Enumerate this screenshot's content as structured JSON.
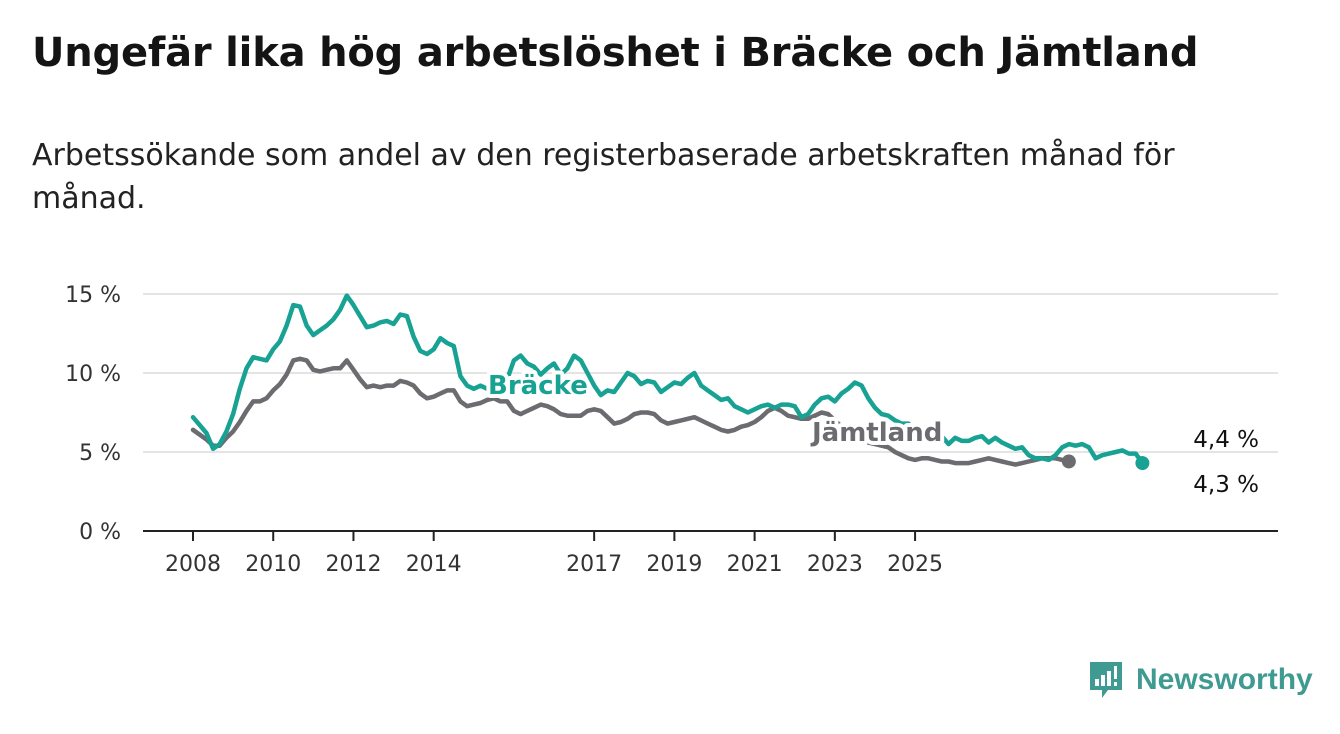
{
  "title": "Ungefär lika hög arbetslöshet i Bräcke och Jämtland",
  "subtitle": "Arbetssökande som andel av den registerbaserade arbetskraften månad för månad.",
  "brand": {
    "name": "Newsworthy",
    "logo_icon": "bar-chart-exclamation-icon",
    "color": "#3f9a92"
  },
  "chart_data": {
    "type": "line",
    "title": "Ungefär lika hög arbetslöshet i Bräcke och Jämtland",
    "subtitle": "Arbetssökande som andel av den registerbaserade arbetskraften månad för månad.",
    "xlabel": "",
    "ylabel": "",
    "x_ticks": [
      "2008",
      "2010",
      "2012",
      "2014",
      "2017",
      "2019",
      "2021",
      "2023",
      "2025"
    ],
    "y_ticks": [
      "0 %",
      "5 %",
      "10 %",
      "15 %"
    ],
    "ylim": [
      0,
      15
    ],
    "grid": "horizontal",
    "legend": "direct labels on lines",
    "annotations": {
      "braecke_last": "4,3 %",
      "jamtland_last": "4,4 %"
    },
    "series": [
      {
        "name": "Bräcke",
        "color": "#17a293",
        "points": [
          [
            "2008-01",
            7.2
          ],
          [
            "2008-03",
            6.7
          ],
          [
            "2008-05",
            6.2
          ],
          [
            "2008-07",
            5.2
          ],
          [
            "2008-09",
            5.5
          ],
          [
            "2008-11",
            6.3
          ],
          [
            "2009-01",
            7.4
          ],
          [
            "2009-03",
            9.0
          ],
          [
            "2009-05",
            10.3
          ],
          [
            "2009-07",
            11.0
          ],
          [
            "2009-09",
            10.9
          ],
          [
            "2009-11",
            10.8
          ],
          [
            "2010-01",
            11.5
          ],
          [
            "2010-03",
            12.0
          ],
          [
            "2010-05",
            13.0
          ],
          [
            "2010-07",
            14.3
          ],
          [
            "2010-09",
            14.2
          ],
          [
            "2010-11",
            13.0
          ],
          [
            "2011-01",
            12.4
          ],
          [
            "2011-03",
            12.7
          ],
          [
            "2011-05",
            13.0
          ],
          [
            "2011-07",
            13.4
          ],
          [
            "2011-09",
            14.0
          ],
          [
            "2011-11",
            14.9
          ],
          [
            "2012-01",
            14.3
          ],
          [
            "2012-03",
            13.6
          ],
          [
            "2012-05",
            12.9
          ],
          [
            "2012-07",
            13.0
          ],
          [
            "2012-09",
            13.2
          ],
          [
            "2012-11",
            13.3
          ],
          [
            "2013-01",
            13.1
          ],
          [
            "2013-03",
            13.7
          ],
          [
            "2013-05",
            13.6
          ],
          [
            "2013-07",
            12.3
          ],
          [
            "2013-09",
            11.4
          ],
          [
            "2013-11",
            11.2
          ],
          [
            "2014-01",
            11.5
          ],
          [
            "2014-03",
            12.2
          ],
          [
            "2014-05",
            11.9
          ],
          [
            "2014-07",
            11.7
          ],
          [
            "2014-09",
            9.8
          ],
          [
            "2014-11",
            9.2
          ],
          [
            "2015-01",
            9.0
          ],
          [
            "2015-03",
            9.2
          ],
          [
            "2015-05",
            9.0
          ],
          [
            "2015-07",
            9.3
          ],
          [
            "2015-09",
            9.1
          ],
          [
            "2015-11",
            9.6
          ],
          [
            "2016-01",
            10.8
          ],
          [
            "2016-03",
            11.1
          ],
          [
            "2016-05",
            10.6
          ],
          [
            "2016-07",
            10.4
          ],
          [
            "2016-09",
            9.9
          ],
          [
            "2016-11",
            10.3
          ],
          [
            "2017-01",
            10.6
          ],
          [
            "2017-03",
            9.9
          ],
          [
            "2017-05",
            10.3
          ],
          [
            "2017-07",
            11.1
          ],
          [
            "2017-09",
            10.8
          ],
          [
            "2017-11",
            10.0
          ],
          [
            "2018-01",
            9.2
          ],
          [
            "2018-03",
            8.6
          ],
          [
            "2018-05",
            8.9
          ],
          [
            "2018-07",
            8.8
          ],
          [
            "2018-09",
            9.4
          ],
          [
            "2018-11",
            10.0
          ],
          [
            "2019-01",
            9.8
          ],
          [
            "2019-03",
            9.3
          ],
          [
            "2019-05",
            9.5
          ],
          [
            "2019-07",
            9.4
          ],
          [
            "2019-09",
            8.8
          ],
          [
            "2019-11",
            9.1
          ],
          [
            "2020-01",
            9.4
          ],
          [
            "2020-03",
            9.3
          ],
          [
            "2020-05",
            9.7
          ],
          [
            "2020-07",
            10.0
          ],
          [
            "2020-09",
            9.2
          ],
          [
            "2020-11",
            8.9
          ],
          [
            "2021-01",
            8.6
          ],
          [
            "2021-03",
            8.3
          ],
          [
            "2021-05",
            8.4
          ],
          [
            "2021-07",
            7.9
          ],
          [
            "2021-09",
            7.7
          ],
          [
            "2021-11",
            7.5
          ],
          [
            "2022-01",
            7.7
          ],
          [
            "2022-03",
            7.9
          ],
          [
            "2022-05",
            8.0
          ],
          [
            "2022-07",
            7.8
          ],
          [
            "2022-09",
            8.0
          ],
          [
            "2022-11",
            8.0
          ],
          [
            "2023-01",
            7.9
          ],
          [
            "2023-03",
            7.2
          ],
          [
            "2023-05",
            7.4
          ],
          [
            "2023-07",
            8.0
          ],
          [
            "2023-09",
            8.4
          ],
          [
            "2023-11",
            8.5
          ],
          [
            "2024-01",
            8.2
          ],
          [
            "2024-03",
            8.7
          ],
          [
            "2024-05",
            9.0
          ],
          [
            "2024-07",
            9.4
          ],
          [
            "2024-09",
            9.2
          ],
          [
            "2024-11",
            8.4
          ],
          [
            "2025-01",
            7.8
          ],
          [
            "2025-03",
            7.4
          ],
          [
            "2025-05",
            7.3
          ],
          [
            "2025-07",
            7.0
          ],
          [
            "2025-09",
            6.8
          ],
          [
            "2025-11",
            6.8
          ],
          [
            "2026-01",
            6.4
          ],
          [
            "2026-03",
            6.5
          ],
          [
            "2026-05",
            6.1
          ],
          [
            "2026-07",
            6.2
          ],
          [
            "2026-09",
            6.0
          ],
          [
            "2026-11",
            5.5
          ],
          [
            "2027-01",
            5.9
          ],
          [
            "2027-03",
            5.7
          ],
          [
            "2027-05",
            5.7
          ],
          [
            "2027-07",
            5.9
          ],
          [
            "2027-09",
            6.0
          ],
          [
            "2027-11",
            5.6
          ],
          [
            "2028-01",
            5.9
          ],
          [
            "2028-03",
            5.6
          ],
          [
            "2028-05",
            5.4
          ],
          [
            "2028-07",
            5.2
          ],
          [
            "2028-09",
            5.3
          ],
          [
            "2028-11",
            4.8
          ],
          [
            "2029-01",
            4.6
          ],
          [
            "2029-03",
            4.6
          ],
          [
            "2029-05",
            4.5
          ],
          [
            "2029-07",
            4.8
          ],
          [
            "2029-09",
            5.3
          ],
          [
            "2029-11",
            5.5
          ],
          [
            "2030-01",
            5.4
          ],
          [
            "2030-03",
            5.5
          ],
          [
            "2030-05",
            5.3
          ],
          [
            "2030-07",
            4.6
          ],
          [
            "2030-09",
            4.8
          ],
          [
            "2030-11",
            4.9
          ],
          [
            "2031-01",
            5.0
          ],
          [
            "2031-03",
            5.1
          ],
          [
            "2031-05",
            4.9
          ],
          [
            "2031-07",
            4.9
          ],
          [
            "2031-09",
            4.3
          ]
        ]
      },
      {
        "name": "Jämtland",
        "color": "#6b6b70",
        "points": [
          [
            "2008-01",
            6.4
          ],
          [
            "2008-03",
            6.1
          ],
          [
            "2008-05",
            5.8
          ],
          [
            "2008-07",
            5.4
          ],
          [
            "2008-09",
            5.4
          ],
          [
            "2008-11",
            5.9
          ],
          [
            "2009-01",
            6.3
          ],
          [
            "2009-03",
            6.9
          ],
          [
            "2009-05",
            7.6
          ],
          [
            "2009-07",
            8.2
          ],
          [
            "2009-09",
            8.2
          ],
          [
            "2009-11",
            8.4
          ],
          [
            "2010-01",
            8.9
          ],
          [
            "2010-03",
            9.3
          ],
          [
            "2010-05",
            9.9
          ],
          [
            "2010-07",
            10.8
          ],
          [
            "2010-09",
            10.9
          ],
          [
            "2010-11",
            10.8
          ],
          [
            "2011-01",
            10.2
          ],
          [
            "2011-03",
            10.1
          ],
          [
            "2011-05",
            10.2
          ],
          [
            "2011-07",
            10.3
          ],
          [
            "2011-09",
            10.3
          ],
          [
            "2011-11",
            10.8
          ],
          [
            "2012-01",
            10.2
          ],
          [
            "2012-03",
            9.6
          ],
          [
            "2012-05",
            9.1
          ],
          [
            "2012-07",
            9.2
          ],
          [
            "2012-09",
            9.1
          ],
          [
            "2012-11",
            9.2
          ],
          [
            "2013-01",
            9.2
          ],
          [
            "2013-03",
            9.5
          ],
          [
            "2013-05",
            9.4
          ],
          [
            "2013-07",
            9.2
          ],
          [
            "2013-09",
            8.7
          ],
          [
            "2013-11",
            8.4
          ],
          [
            "2014-01",
            8.5
          ],
          [
            "2014-03",
            8.7
          ],
          [
            "2014-05",
            8.9
          ],
          [
            "2014-07",
            8.9
          ],
          [
            "2014-09",
            8.2
          ],
          [
            "2014-11",
            7.9
          ],
          [
            "2015-01",
            8.0
          ],
          [
            "2015-03",
            8.1
          ],
          [
            "2015-05",
            8.3
          ],
          [
            "2015-07",
            8.4
          ],
          [
            "2015-09",
            8.2
          ],
          [
            "2015-11",
            8.2
          ],
          [
            "2016-01",
            7.6
          ],
          [
            "2016-03",
            7.4
          ],
          [
            "2016-05",
            7.6
          ],
          [
            "2016-07",
            7.8
          ],
          [
            "2016-09",
            8.0
          ],
          [
            "2016-11",
            7.9
          ],
          [
            "2017-01",
            7.7
          ],
          [
            "2017-03",
            7.4
          ],
          [
            "2017-05",
            7.3
          ],
          [
            "2017-07",
            7.3
          ],
          [
            "2017-09",
            7.3
          ],
          [
            "2017-11",
            7.6
          ],
          [
            "2018-01",
            7.7
          ],
          [
            "2018-03",
            7.6
          ],
          [
            "2018-05",
            7.2
          ],
          [
            "2018-07",
            6.8
          ],
          [
            "2018-09",
            6.9
          ],
          [
            "2018-11",
            7.1
          ],
          [
            "2019-01",
            7.4
          ],
          [
            "2019-03",
            7.5
          ],
          [
            "2019-05",
            7.5
          ],
          [
            "2019-07",
            7.4
          ],
          [
            "2019-09",
            7.0
          ],
          [
            "2019-11",
            6.8
          ],
          [
            "2020-01",
            6.9
          ],
          [
            "2020-03",
            7.0
          ],
          [
            "2020-05",
            7.1
          ],
          [
            "2020-07",
            7.2
          ],
          [
            "2020-09",
            7.0
          ],
          [
            "2020-11",
            6.8
          ],
          [
            "2021-01",
            6.6
          ],
          [
            "2021-03",
            6.4
          ],
          [
            "2021-05",
            6.3
          ],
          [
            "2021-07",
            6.4
          ],
          [
            "2021-09",
            6.6
          ],
          [
            "2021-11",
            6.7
          ],
          [
            "2022-01",
            6.9
          ],
          [
            "2022-03",
            7.2
          ],
          [
            "2022-05",
            7.6
          ],
          [
            "2022-07",
            7.8
          ],
          [
            "2022-09",
            7.6
          ],
          [
            "2022-11",
            7.3
          ],
          [
            "2023-01",
            7.2
          ],
          [
            "2023-03",
            7.1
          ],
          [
            "2023-05",
            7.1
          ],
          [
            "2023-07",
            7.3
          ],
          [
            "2023-09",
            7.5
          ],
          [
            "2023-11",
            7.4
          ],
          [
            "2024-01",
            7.0
          ],
          [
            "2024-03",
            6.6
          ],
          [
            "2024-05",
            6.3
          ],
          [
            "2024-07",
            6.0
          ],
          [
            "2024-09",
            5.8
          ],
          [
            "2024-11",
            5.6
          ],
          [
            "2025-01",
            5.5
          ],
          [
            "2025-03",
            5.4
          ],
          [
            "2025-05",
            5.3
          ],
          [
            "2025-07",
            5.0
          ],
          [
            "2025-09",
            4.8
          ],
          [
            "2025-11",
            4.6
          ],
          [
            "2026-01",
            4.5
          ],
          [
            "2026-03",
            4.6
          ],
          [
            "2026-05",
            4.6
          ],
          [
            "2026-07",
            4.5
          ],
          [
            "2026-09",
            4.4
          ],
          [
            "2026-11",
            4.4
          ],
          [
            "2027-01",
            4.3
          ],
          [
            "2027-03",
            4.3
          ],
          [
            "2027-05",
            4.3
          ],
          [
            "2027-07",
            4.4
          ],
          [
            "2027-09",
            4.5
          ],
          [
            "2027-11",
            4.6
          ],
          [
            "2028-01",
            4.5
          ],
          [
            "2028-03",
            4.4
          ],
          [
            "2028-05",
            4.3
          ],
          [
            "2028-07",
            4.2
          ],
          [
            "2028-09",
            4.3
          ],
          [
            "2028-11",
            4.4
          ],
          [
            "2029-01",
            4.5
          ],
          [
            "2029-03",
            4.6
          ],
          [
            "2029-05",
            4.6
          ],
          [
            "2029-07",
            4.6
          ],
          [
            "2029-09",
            4.5
          ],
          [
            "2029-11",
            4.4
          ]
        ]
      }
    ]
  }
}
